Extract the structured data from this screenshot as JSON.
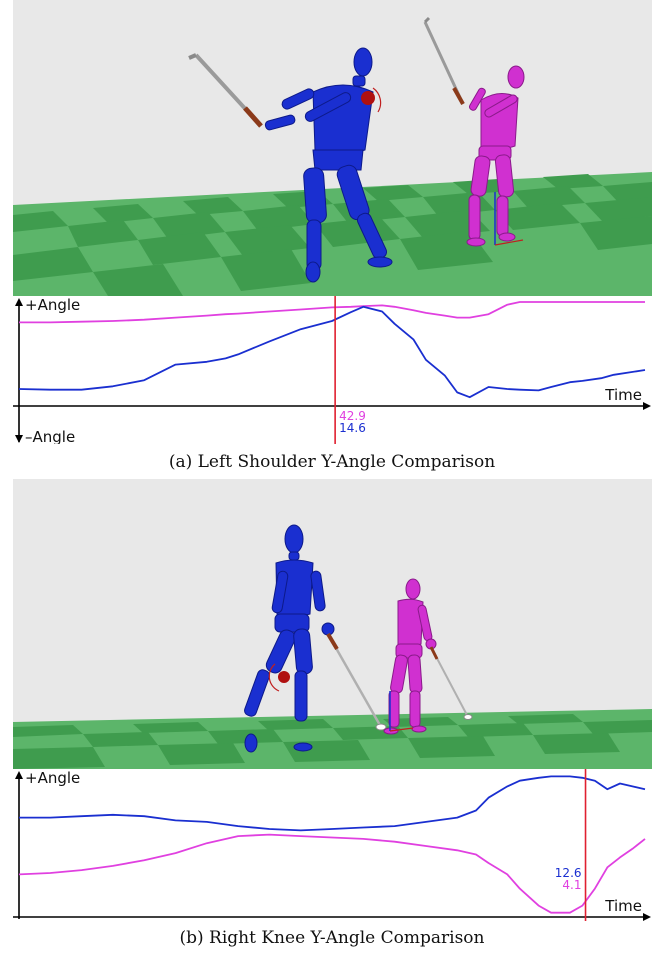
{
  "colors": {
    "sky": "#e8e8e8",
    "check_light": "#7fd08a",
    "check_dark": "#3f9c4e",
    "figure_blue": "#1a2fd0",
    "figure_magenta": "#d030d0",
    "joint_marker": "#b01010",
    "cursor": "#e02030",
    "axis": "#000000"
  },
  "chart_data": [
    {
      "type": "line",
      "caption": "(a) Left Shoulder Y-Angle Comparison",
      "ylabel_top": "+Angle",
      "ylabel_bottom": "–Angle",
      "xlabel": "Time",
      "x": [
        0,
        0.05,
        0.1,
        0.15,
        0.2,
        0.25,
        0.3,
        0.33,
        0.35,
        0.4,
        0.45,
        0.5,
        0.53,
        0.55,
        0.58,
        0.6,
        0.63,
        0.65,
        0.68,
        0.7,
        0.72,
        0.75,
        0.78,
        0.8,
        0.83,
        0.85,
        0.88,
        0.9,
        0.93,
        0.95,
        1.0
      ],
      "ylim": [
        -1,
        1
      ],
      "series": [
        {
          "color": "magenta",
          "values": [
            0.7,
            0.7,
            0.71,
            0.72,
            0.74,
            0.77,
            0.8,
            0.82,
            0.83,
            0.86,
            0.89,
            0.92,
            0.93,
            0.94,
            0.95,
            0.93,
            0.88,
            0.84,
            0.8,
            0.77,
            0.77,
            0.82,
            0.96,
            1.0,
            1.0,
            1.0,
            1.0,
            1.0,
            1.0,
            1.0,
            1.0
          ]
        },
        {
          "color": "blue",
          "values": [
            -0.28,
            -0.29,
            -0.29,
            -0.24,
            -0.15,
            0.08,
            0.12,
            0.17,
            0.23,
            0.42,
            0.6,
            0.72,
            0.85,
            0.93,
            0.86,
            0.68,
            0.45,
            0.15,
            -0.08,
            -0.33,
            -0.4,
            -0.25,
            -0.28,
            -0.29,
            -0.3,
            -0.25,
            -0.18,
            -0.16,
            -0.12,
            -0.07,
            0.0
          ]
        }
      ],
      "cursor": {
        "x": 0.505,
        "labels": [
          "42.9",
          "14.6"
        ]
      }
    },
    {
      "type": "line",
      "caption": "(b) Right Knee Y-Angle Comparison",
      "ylabel_top": "+Angle",
      "xlabel": "Time",
      "x": [
        0,
        0.05,
        0.1,
        0.15,
        0.2,
        0.25,
        0.3,
        0.35,
        0.4,
        0.45,
        0.5,
        0.55,
        0.6,
        0.65,
        0.7,
        0.73,
        0.75,
        0.78,
        0.8,
        0.83,
        0.85,
        0.88,
        0.9,
        0.92,
        0.94,
        0.96,
        0.98,
        1.0
      ],
      "ylim": [
        0,
        1
      ],
      "series": [
        {
          "color": "blue",
          "values": [
            0.7,
            0.7,
            0.71,
            0.72,
            0.71,
            0.68,
            0.67,
            0.64,
            0.62,
            0.61,
            0.62,
            0.63,
            0.64,
            0.67,
            0.7,
            0.75,
            0.84,
            0.92,
            0.96,
            0.98,
            0.99,
            0.99,
            0.98,
            0.96,
            0.9,
            0.94,
            0.92,
            0.9
          ]
        },
        {
          "color": "magenta",
          "values": [
            0.3,
            0.31,
            0.33,
            0.36,
            0.4,
            0.45,
            0.52,
            0.57,
            0.58,
            0.57,
            0.56,
            0.55,
            0.53,
            0.5,
            0.47,
            0.44,
            0.38,
            0.3,
            0.2,
            0.08,
            0.03,
            0.03,
            0.08,
            0.2,
            0.35,
            0.42,
            0.48,
            0.55
          ]
        }
      ],
      "cursor": {
        "x": 0.905,
        "labels": [
          "12.6",
          "4.1"
        ]
      }
    }
  ]
}
